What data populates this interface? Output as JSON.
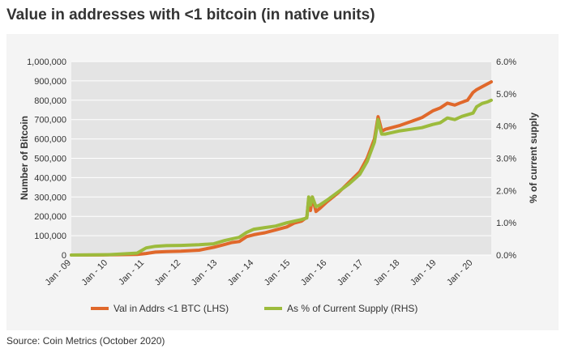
{
  "title": "Value in addresses with <1 bitcoin (in native units)",
  "source": "Source: Coin Metrics (October 2020)",
  "chart_data": {
    "type": "line",
    "ylabel_left": "Number of Bitcoin",
    "ylabel_right": "% of current supply",
    "ylim_left": [
      0,
      1000000
    ],
    "ylim_right": [
      0,
      6
    ],
    "yticks_left": [
      "0",
      "100,000",
      "200,000",
      "300,000",
      "400,000",
      "500,000",
      "600,000",
      "700,000",
      "800,000",
      "900,000",
      "1,000,000"
    ],
    "yticks_right": [
      "0.0%",
      "1.0%",
      "2.0%",
      "3.0%",
      "4.0%",
      "5.0%",
      "6.0%"
    ],
    "xticks": [
      "Jan - 09",
      "Jan - 10",
      "Jan - 11",
      "Jan - 12",
      "Jan - 13",
      "Jan - 14",
      "Jan - 15",
      "Jan - 16",
      "Jan - 17",
      "Jan - 18",
      "Jan - 19",
      "Jan - 20"
    ],
    "series": [
      {
        "name": "Val in Addrs <1 BTC (LHS)",
        "axis": "left",
        "color": "#e0682b",
        "x": [
          2009.0,
          2010.0,
          2010.8,
          2011.05,
          2011.3,
          2011.6,
          2012.0,
          2012.5,
          2012.9,
          2013.2,
          2013.4,
          2013.6,
          2013.8,
          2014.0,
          2014.3,
          2014.6,
          2014.9,
          2015.1,
          2015.3,
          2015.45,
          2015.5,
          2015.55,
          2015.6,
          2015.7,
          2015.8,
          2016.0,
          2016.3,
          2016.6,
          2016.9,
          2017.1,
          2017.3,
          2017.4,
          2017.45,
          2017.5,
          2017.6,
          2017.8,
          2018.0,
          2018.3,
          2018.6,
          2018.9,
          2019.1,
          2019.3,
          2019.5,
          2019.7,
          2019.85,
          2020.0,
          2020.1,
          2020.25,
          2020.4,
          2020.5
        ],
        "y": [
          0,
          1000,
          3000,
          8000,
          15000,
          18000,
          20000,
          25000,
          40000,
          55000,
          65000,
          70000,
          95000,
          105000,
          115000,
          130000,
          145000,
          165000,
          175000,
          195000,
          290000,
          230000,
          300000,
          225000,
          240000,
          275000,
          320000,
          375000,
          430000,
          500000,
          600000,
          715000,
          680000,
          640000,
          650000,
          660000,
          670000,
          690000,
          710000,
          745000,
          760000,
          785000,
          775000,
          790000,
          800000,
          840000,
          855000,
          870000,
          885000,
          895000
        ]
      },
      {
        "name": "As % of Current Supply (RHS)",
        "axis": "right",
        "color": "#9cbb3c",
        "x": [
          2009.0,
          2010.0,
          2010.8,
          2011.05,
          2011.3,
          2011.6,
          2012.0,
          2012.5,
          2012.9,
          2013.2,
          2013.4,
          2013.6,
          2013.8,
          2014.0,
          2014.3,
          2014.6,
          2014.9,
          2015.1,
          2015.3,
          2015.45,
          2015.5,
          2015.55,
          2015.6,
          2015.7,
          2015.8,
          2016.0,
          2016.3,
          2016.6,
          2016.9,
          2017.1,
          2017.3,
          2017.4,
          2017.45,
          2017.5,
          2017.6,
          2017.8,
          2018.0,
          2018.3,
          2018.6,
          2018.9,
          2019.1,
          2019.3,
          2019.5,
          2019.7,
          2019.85,
          2020.0,
          2020.1,
          2020.25,
          2020.4,
          2020.5
        ],
        "y": [
          0,
          0.01,
          0.06,
          0.22,
          0.27,
          0.29,
          0.3,
          0.32,
          0.35,
          0.45,
          0.5,
          0.55,
          0.7,
          0.8,
          0.85,
          0.9,
          1.0,
          1.05,
          1.1,
          1.15,
          1.8,
          1.55,
          1.8,
          1.5,
          1.55,
          1.7,
          1.95,
          2.2,
          2.5,
          2.9,
          3.5,
          4.2,
          3.95,
          3.75,
          3.75,
          3.8,
          3.85,
          3.9,
          3.95,
          4.05,
          4.1,
          4.25,
          4.2,
          4.3,
          4.35,
          4.4,
          4.6,
          4.7,
          4.75,
          4.8
        ]
      }
    ]
  }
}
